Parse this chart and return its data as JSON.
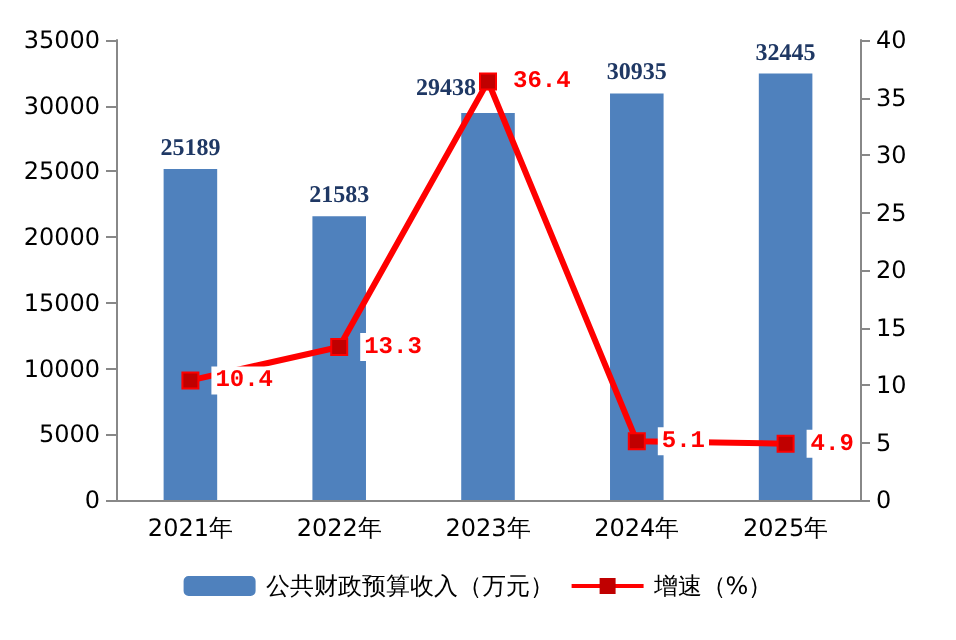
{
  "chart_data": {
    "type": "bar",
    "categories": [
      "2021年",
      "2022年",
      "2023年",
      "2024年",
      "2025年"
    ],
    "series": [
      {
        "name": "公共财政预算收入（万元）",
        "color": "#4f81bd",
        "values": [
          25189,
          21583,
          29438,
          30935,
          32445
        ]
      },
      {
        "name": "增速（%）",
        "type": "line",
        "axis": "y2",
        "color": "#ff0000",
        "values": [
          10.4,
          13.3,
          36.4,
          5.1,
          4.9
        ]
      }
    ],
    "ylim": [
      0,
      35000
    ],
    "yticks": [
      0,
      5000,
      10000,
      15000,
      20000,
      25000,
      30000,
      35000
    ],
    "y2lim": [
      0,
      40
    ],
    "y2ticks": [
      0,
      5,
      10,
      15,
      20,
      25,
      30,
      35,
      40
    ],
    "data_labels": true,
    "grid": false,
    "legend": "bottom",
    "marker": "square",
    "line_style": "solid"
  }
}
